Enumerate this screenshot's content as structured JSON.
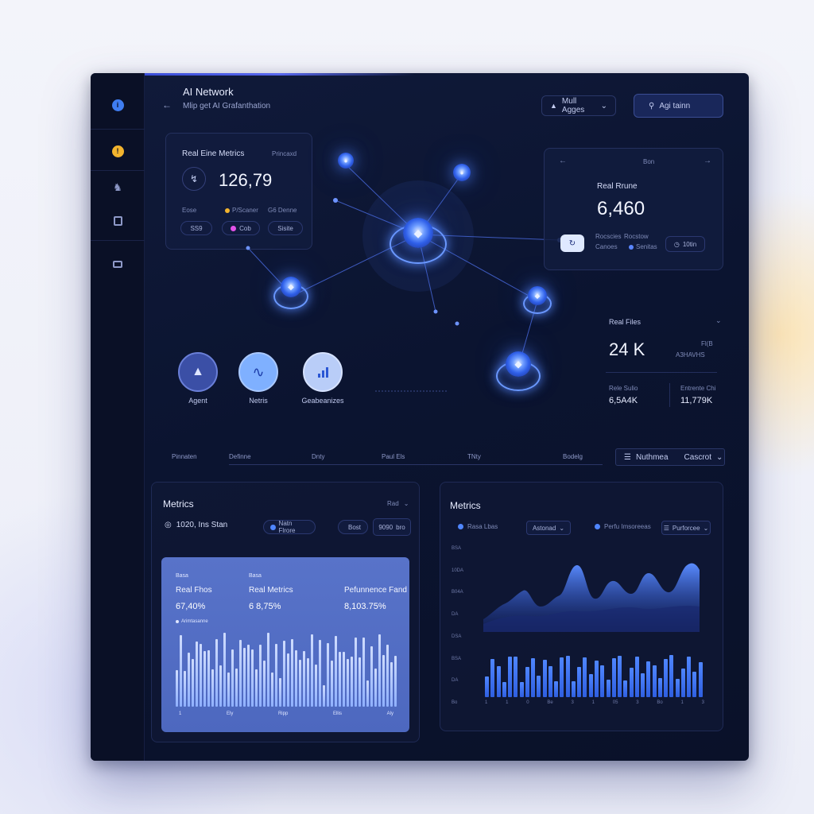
{
  "header": {
    "title": "AI Network",
    "subtitle": "Mlip get AI Grafanthation",
    "mode_select": "Mull Agges",
    "action_button": "Agi tainn"
  },
  "metrics_card": {
    "title": "Real Eine Metrics",
    "tag": "Princaxd",
    "value": "126,79",
    "row1": [
      "Eose",
      "P/Scaner",
      "G6 Denne"
    ],
    "row2": [
      "SS9",
      "Cob",
      "Sisite"
    ]
  },
  "realtime_card": {
    "title": "Real Rrune",
    "value": "6,460",
    "badge_left": "Rocscies",
    "badge_left_sub": "Canoes",
    "badge_mid": "Rocstow",
    "badge_mid_sub": "Senitas",
    "pill": "10tin",
    "top_label": "Bon"
  },
  "files_card": {
    "title": "Real Files",
    "value": "24 K",
    "side_small1": "Fl(B",
    "side_small2": "A3HAVHS",
    "left_label": "Rele Sulio",
    "left_value": "6,5A4K",
    "right_label": "Entrente Chi",
    "right_value": "11,779K"
  },
  "circles": [
    {
      "label": "Agent",
      "icon": "agent-icon"
    },
    {
      "label": "Netris",
      "icon": "wifi-icon"
    },
    {
      "label": "Geabeanizes",
      "icon": "bars-icon"
    }
  ],
  "tabs": [
    "Pinnaten",
    "Definne",
    "Dnty",
    "Paul Els",
    "TNty",
    "Bodelg"
  ],
  "tabs_filter": {
    "left": "Nuthmea",
    "right": "Cascrot"
  },
  "left_panel": {
    "title": "Metrics",
    "select": "Rad",
    "stat": "1020, Ins Stan",
    "chip1": "Natn Flrore",
    "chip2": "Bost",
    "chip3": "9090",
    "chip3b": "bro",
    "inner": {
      "label1": "Basa",
      "head1": "Real Fhos",
      "val1": "67,40%",
      "label2": "Basa",
      "head2": "Real Metrics",
      "val2": "6 8,75%",
      "head3": "Pefunnence Fand",
      "val3": "8,103.75%",
      "legend": "Arimtasanne",
      "xticks": [
        "1",
        "Ely",
        "Ripp",
        "Ellis",
        "Aly"
      ]
    }
  },
  "right_panel": {
    "title": "Metrics",
    "legend1": "Rasa Lbas",
    "select1": "Astonad",
    "legend2": "Perfu Imsoreeas",
    "select2": "Purforcee",
    "yticks": [
      "BSA",
      "10DA",
      "B04A",
      "DA",
      "DSA",
      "BSA",
      "DA",
      "Bo"
    ],
    "xticks": [
      "1",
      "1",
      "0",
      "Be",
      "3",
      "1",
      "05",
      "3",
      "Bo",
      "1",
      "3"
    ]
  }
}
